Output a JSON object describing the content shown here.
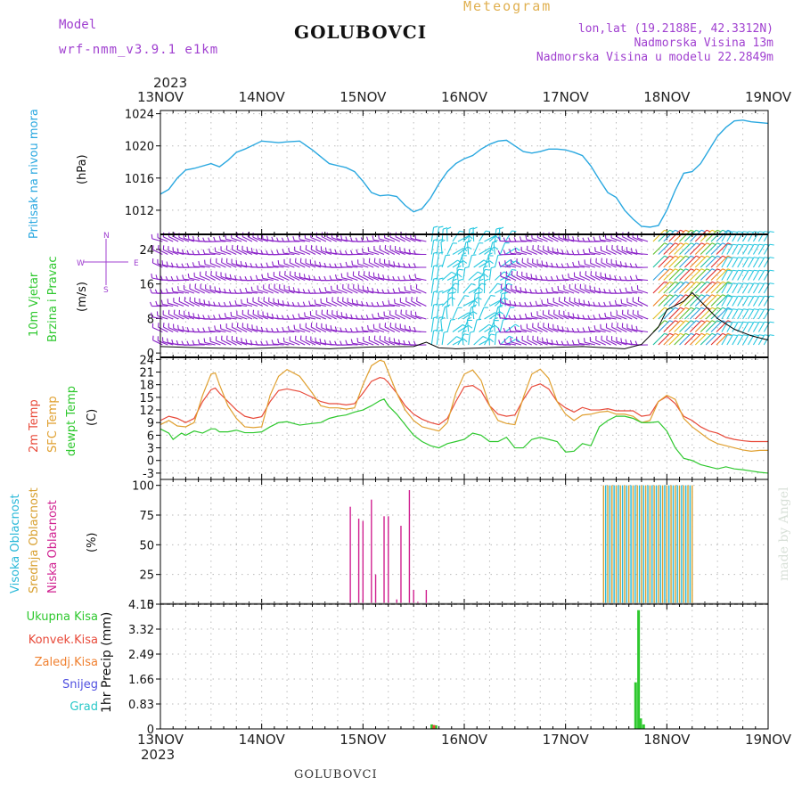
{
  "header": {
    "model_label": "Model",
    "model_name": "wrf-nmm_v3.9.1 e1km",
    "title": "GOLUBOVCI",
    "subtitle": "Meteogram",
    "coords": "lon,lat (19.2188E, 42.3312N)",
    "elevation": "Nadmorska Visina 13m",
    "model_elevation": "Nadmorska Visina u modelu 22.2849m",
    "year_top": "2023",
    "year_bottom": "2023",
    "footer_title": "GOLUBOVCI",
    "watermark": "made by Angel"
  },
  "axis_dates": [
    "13NOV",
    "14NOV",
    "15NOV",
    "16NOV",
    "17NOV",
    "18NOV",
    "19NOV"
  ],
  "panel_labels": {
    "pressure": {
      "name": "Pritisak na nivou mora",
      "unit": "(hPa)"
    },
    "wind": {
      "name1": "10m Vjetar",
      "name2": "Brzina i Pravac",
      "unit": "(m/s)",
      "compass": "N W E S"
    },
    "temp": {
      "name1": "2m Temp",
      "name2": "SFC Temp",
      "name3": "dewpt Temp",
      "unit": "(C)"
    },
    "cloud": {
      "name1": "Visoka Oblacnost",
      "name2": "Srednja Oblacnost",
      "name3": "Niska Oblacnost",
      "unit": "(%)"
    },
    "precip": {
      "name": "1hr Precip (mm)",
      "legend": [
        "Ukupna Kisa",
        "Konvek.Kisa",
        "Zaledj.Kisa",
        "Snijeg",
        "Grad"
      ]
    }
  },
  "colors": {
    "pressure": "#2aa8e0",
    "wind_violet": "#8a22c8",
    "wind_cyan": "#28c8e0",
    "t2m": "#e84a3a",
    "tsfc": "#e0a030",
    "dewpt": "#2ec82e",
    "cloud_high": "#28b8d8",
    "cloud_mid": "#d8a030",
    "cloud_low": "#d02090",
    "precip_total": "#2ec82e",
    "precip_conv": "#e84a3a",
    "precip_frz": "#f08030",
    "snow": "#5050e0",
    "hail": "#28c8c8"
  },
  "chart_data": [
    {
      "type": "line",
      "title": "Pritisak na nivou mora",
      "ylabel": "(hPa)",
      "ylim": [
        1009,
        1024.4
      ],
      "yticks": [
        1012,
        1016,
        1020,
        1024
      ],
      "x_range": [
        0,
        144
      ],
      "series": [
        {
          "x": [
            0,
            2,
            4,
            6,
            8,
            12,
            14,
            16,
            18,
            20,
            24,
            26,
            28,
            30,
            33,
            36,
            40,
            44,
            46,
            48,
            50,
            52,
            54,
            56,
            58,
            60,
            62,
            64,
            66,
            68,
            70,
            72,
            74,
            76,
            78,
            80,
            82,
            84,
            86,
            88,
            90,
            92,
            94,
            96,
            98,
            100,
            102,
            104,
            106,
            108,
            110,
            112,
            114,
            116,
            118,
            120,
            122,
            124,
            126,
            128,
            130,
            132,
            134,
            136,
            138,
            140,
            142,
            144
          ],
          "values": [
            1014,
            1014.6,
            1016,
            1017,
            1017.2,
            1017.8,
            1017.4,
            1018.2,
            1019.2,
            1019.6,
            1020.6,
            1020.5,
            1020.4,
            1020.5,
            1020.6,
            1019.5,
            1017.8,
            1017.3,
            1016.8,
            1015.6,
            1014.2,
            1013.8,
            1013.9,
            1013.7,
            1012.6,
            1011.8,
            1012.2,
            1013.5,
            1015.3,
            1016.8,
            1017.8,
            1018.4,
            1018.8,
            1019.6,
            1020.2,
            1020.6,
            1020.7,
            1020.0,
            1019.3,
            1019.1,
            1019.3,
            1019.6,
            1019.6,
            1019.5,
            1019.2,
            1018.8,
            1017.5,
            1015.8,
            1014.2,
            1013.6,
            1012.0,
            1010.9,
            1010.0,
            1009.9,
            1010.1,
            1012.0,
            1014.5,
            1016.6,
            1016.8,
            1017.8,
            1019.5,
            1021.2,
            1022.3,
            1023.1,
            1023.2,
            1023.0,
            1022.9,
            1022.8
          ]
        }
      ]
    },
    {
      "type": "line",
      "title": "10m Vjetar Brzina i Pravac",
      "ylabel": "(m/s)",
      "ylim": [
        -1,
        27.5
      ],
      "yticks": [
        0,
        8,
        16,
        24
      ],
      "x_range": [
        0,
        144
      ],
      "series": [
        {
          "name": "Brzina",
          "x": [
            0,
            10,
            20,
            30,
            40,
            50,
            60,
            63,
            66,
            70,
            80,
            90,
            100,
            110,
            114,
            118,
            120,
            124,
            126,
            128,
            130,
            132,
            136,
            140,
            144
          ],
          "values": [
            1.5,
            1.2,
            1.0,
            1.3,
            1.0,
            1.4,
            1.5,
            2.5,
            1.2,
            1.0,
            1.3,
            1.2,
            1.5,
            1.0,
            2.0,
            6.0,
            10.0,
            12.0,
            14.0,
            12.0,
            10.0,
            8.0,
            5.5,
            4.0,
            3.0
          ]
        }
      ]
    },
    {
      "type": "line",
      "title": "2m Temp / SFC Temp / dewpt Temp",
      "ylabel": "(C)",
      "ylim": [
        -4.5,
        24.5
      ],
      "yticks": [
        -3,
        0,
        3,
        6,
        9,
        12,
        15,
        18,
        21,
        24
      ],
      "x_range": [
        0,
        144
      ],
      "series": [
        {
          "name": "2m Temp",
          "x": [
            0,
            2,
            4,
            6,
            8,
            10,
            12,
            13,
            14,
            16,
            18,
            20,
            22,
            24,
            26,
            28,
            30,
            33,
            36,
            37,
            38,
            40,
            42,
            44,
            46,
            48,
            50,
            52,
            53,
            54,
            56,
            58,
            60,
            62,
            64,
            66,
            68,
            70,
            72,
            74,
            76,
            78,
            80,
            82,
            84,
            86,
            88,
            90,
            92,
            94,
            96,
            98,
            100,
            102,
            104,
            106,
            108,
            110,
            112,
            114,
            116,
            118,
            120,
            122,
            124,
            126,
            128,
            130,
            132,
            134,
            136,
            138,
            140,
            142,
            144
          ],
          "values": [
            9.5,
            10.5,
            10,
            9,
            10,
            14,
            16.8,
            17.2,
            16,
            14,
            12,
            10.5,
            10,
            10.4,
            14,
            16.6,
            17,
            16.4,
            15,
            14.5,
            14,
            13.5,
            13.5,
            13.2,
            13.5,
            16,
            18.8,
            19.7,
            19.5,
            18.5,
            16,
            13,
            11,
            9.8,
            9,
            8.5,
            10,
            14,
            17.5,
            17.8,
            16.5,
            13,
            11,
            10.5,
            10.8,
            14.5,
            17.5,
            18.2,
            17,
            14,
            12.5,
            11.5,
            12.6,
            12,
            12,
            12.3,
            11.8,
            11.8,
            11.8,
            10.5,
            10.8,
            14,
            15.2,
            13.5,
            10.5,
            9.5,
            8,
            7,
            6.5,
            5.5,
            5,
            4.7,
            4.5,
            4.5,
            4.5
          ]
        },
        {
          "name": "SFC Temp",
          "x": [
            0,
            2,
            4,
            6,
            8,
            10,
            12,
            13,
            14,
            16,
            18,
            20,
            22,
            24,
            26,
            28,
            30,
            33,
            36,
            37,
            38,
            40,
            42,
            44,
            46,
            48,
            50,
            52,
            53,
            54,
            56,
            58,
            60,
            62,
            64,
            66,
            68,
            70,
            72,
            74,
            76,
            78,
            80,
            82,
            84,
            86,
            88,
            90,
            92,
            94,
            96,
            98,
            100,
            102,
            104,
            106,
            108,
            110,
            112,
            114,
            116,
            118,
            120,
            122,
            124,
            126,
            128,
            130,
            132,
            134,
            136,
            138,
            140,
            142,
            144
          ],
          "values": [
            8.5,
            9.5,
            8.2,
            8,
            9,
            15.5,
            20.5,
            20.8,
            18,
            13,
            10,
            8,
            7.8,
            8,
            15.5,
            20,
            21.6,
            20,
            16,
            14.5,
            13,
            12.5,
            12.5,
            12.2,
            12.5,
            18,
            22.5,
            23.8,
            23.5,
            21,
            16,
            12,
            9.5,
            8,
            7.5,
            7,
            9,
            16,
            20.5,
            21.5,
            19,
            13,
            9.5,
            8.8,
            8.5,
            15,
            20.5,
            21.7,
            19.5,
            14,
            11,
            9.5,
            10.8,
            11,
            11.5,
            11.7,
            11,
            11,
            10.5,
            9,
            9.5,
            14,
            15.5,
            14.5,
            10,
            8,
            6.5,
            5,
            4,
            3.5,
            3,
            2.5,
            2.2,
            2.4,
            2.4
          ]
        },
        {
          "name": "dewpt Temp",
          "x": [
            0,
            2,
            3,
            5,
            6,
            8,
            10,
            12,
            13,
            14,
            16,
            18,
            20,
            22,
            24,
            26,
            28,
            30,
            33,
            36,
            38,
            40,
            42,
            44,
            46,
            48,
            50,
            52,
            53,
            54,
            56,
            58,
            60,
            62,
            64,
            66,
            68,
            70,
            72,
            74,
            76,
            78,
            80,
            82,
            84,
            86,
            88,
            90,
            92,
            94,
            96,
            98,
            100,
            102,
            104,
            106,
            108,
            110,
            112,
            114,
            116,
            118,
            120,
            122,
            124,
            126,
            128,
            130,
            132,
            134,
            136,
            138,
            140,
            142,
            144
          ],
          "values": [
            7.5,
            6.5,
            5,
            6.5,
            6,
            7,
            6.5,
            7.5,
            7.5,
            6.8,
            6.8,
            7.2,
            6.6,
            6.6,
            6.8,
            8,
            9,
            9.2,
            8.4,
            8.8,
            9,
            10,
            10.5,
            10.8,
            11.5,
            12,
            13,
            14.2,
            14.6,
            13,
            11,
            8.5,
            6,
            4.5,
            3.5,
            3,
            4,
            4.5,
            5,
            6.5,
            6,
            4.5,
            4.5,
            5.5,
            3,
            3,
            5,
            5.5,
            5,
            4.5,
            2,
            2.2,
            4,
            3.5,
            8,
            9.5,
            10.5,
            10.5,
            10,
            9,
            9,
            9.2,
            7,
            3,
            0.5,
            0,
            -1,
            -1.5,
            -2,
            -1.5,
            -2,
            -2.2,
            -2.5,
            -2.8,
            -3
          ]
        }
      ]
    },
    {
      "type": "bar",
      "title": "Visoka / Srednja / Niska Oblacnost",
      "ylabel": "(%)",
      "ylim": [
        0,
        105
      ],
      "yticks": [
        0,
        25,
        50,
        75,
        100
      ],
      "x_range": [
        0,
        144
      ],
      "series": [
        {
          "name": "Niska Oblacnost",
          "x": [
            45,
            47,
            48,
            50,
            51,
            53,
            54,
            56,
            57,
            59,
            60,
            61,
            63
          ],
          "values": [
            82,
            72,
            70,
            88,
            25,
            74,
            74,
            4,
            66,
            96,
            12,
            2,
            12
          ]
        },
        {
          "name": "Srednja Oblacnost",
          "x": [
            105,
            106,
            107,
            108,
            109,
            110,
            111,
            112,
            113,
            114,
            115,
            116,
            117,
            118,
            119,
            120,
            121,
            122,
            123,
            124,
            125,
            126
          ],
          "values": [
            100,
            100,
            100,
            100,
            100,
            100,
            100,
            100,
            100,
            100,
            100,
            100,
            100,
            100,
            100,
            100,
            100,
            100,
            100,
            100,
            100,
            100
          ]
        },
        {
          "name": "Visoka Oblacnost",
          "x": [
            105.5,
            106.5,
            107.5,
            108.5,
            109.5,
            110.5,
            111.5,
            112.5,
            113.5,
            114.5,
            115.5,
            116.5,
            117.5,
            118.5,
            119.5,
            120.5,
            121.5,
            122.5,
            123.5,
            124.5,
            125.5
          ],
          "values": [
            100,
            100,
            100,
            100,
            100,
            100,
            100,
            100,
            100,
            100,
            100,
            100,
            100,
            100,
            100,
            100,
            100,
            100,
            100,
            100,
            100
          ]
        }
      ]
    },
    {
      "type": "bar",
      "title": "1hr Precip",
      "ylabel": "1hr Precip (mm)",
      "ylim": [
        0,
        4.15
      ],
      "yticks": [
        0,
        0.83,
        1.66,
        2.49,
        3.32,
        4.15
      ],
      "x_range": [
        0,
        144
      ],
      "series": [
        {
          "name": "Ukupna Kisa",
          "x": [
            64.3,
            65.3,
            112.6,
            113.3,
            113.8,
            114.5
          ],
          "values": [
            0.15,
            0.12,
            1.55,
            3.95,
            0.35,
            0.15
          ]
        },
        {
          "name": "Konvek.Kisa",
          "x": [
            64.8
          ],
          "values": [
            0.13
          ]
        }
      ]
    }
  ]
}
